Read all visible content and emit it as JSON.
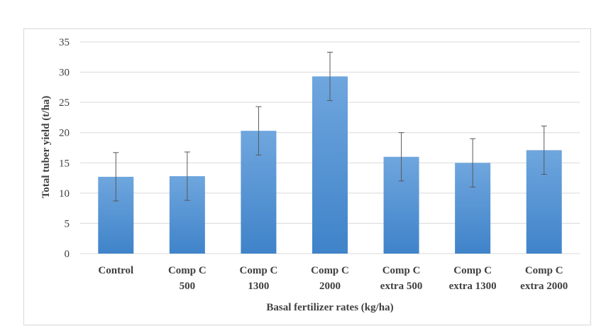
{
  "chart_data": {
    "type": "bar",
    "title": "",
    "xlabel": "Basal fertilizer rates (kg/ha)",
    "ylabel": "Total tuber yield (t/ha)",
    "ylim": [
      0,
      35
    ],
    "yticks": [
      0,
      5,
      10,
      15,
      20,
      25,
      30,
      35
    ],
    "grid": true,
    "legend": "none",
    "categories": [
      [
        "Control"
      ],
      [
        "Comp C",
        "500"
      ],
      [
        "Comp C",
        "1300"
      ],
      [
        "Comp C",
        "2000"
      ],
      [
        "Comp C",
        "extra 500"
      ],
      [
        "Comp C",
        "extra 1300"
      ],
      [
        "Comp C",
        "extra 2000"
      ]
    ],
    "values": [
      12.7,
      12.8,
      20.3,
      29.3,
      16.0,
      15.0,
      17.1
    ],
    "error": [
      4.0,
      4.0,
      4.0,
      4.0,
      4.0,
      4.0,
      4.0
    ],
    "colors": {
      "bar_top": "#6fa6de",
      "bar_bottom": "#3f83c9",
      "grid": "#d9d9d9",
      "error_bar": "#595959"
    }
  }
}
